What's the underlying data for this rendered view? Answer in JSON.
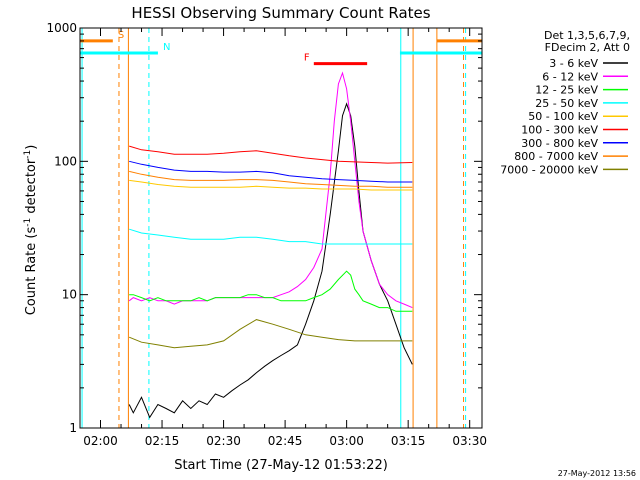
{
  "chart_data": {
    "type": "line",
    "title": "HESSI Observing Summary Count Rates",
    "xlabel": "Start Time (27-May-12 01:53:22)",
    "ylabel_main": "Count Rate (s",
    "ylabel_sup1": "-1",
    "ylabel_mid": " detector",
    "ylabel_sup2": "-1",
    "ylabel_end": ")",
    "yscale": "log",
    "ylim": [
      1,
      1000
    ],
    "xlim_minutes": [
      115,
      213
    ],
    "yticks": [
      {
        "v": 1,
        "label": "1"
      },
      {
        "v": 10,
        "label": "10"
      },
      {
        "v": 100,
        "label": "100"
      },
      {
        "v": 1000,
        "label": "1000"
      }
    ],
    "xticks": [
      {
        "m": 120,
        "label": "02:00"
      },
      {
        "m": 135,
        "label": "02:15"
      },
      {
        "m": 150,
        "label": "02:30"
      },
      {
        "m": 165,
        "label": "02:45"
      },
      {
        "m": 180,
        "label": "03:00"
      },
      {
        "m": 195,
        "label": "03:15"
      },
      {
        "m": 210,
        "label": "03:30"
      }
    ],
    "legend_header": [
      "Det 1,3,5,6,7,9,",
      "FDecim 2, Att 0"
    ],
    "series": [
      {
        "name": "3 - 6 keV",
        "color": "#000000",
        "x": [
          127,
          128,
          130,
          132,
          134,
          136,
          138,
          140,
          142,
          144,
          146,
          148,
          150,
          152,
          154,
          156,
          158,
          160,
          162,
          164,
          166,
          168,
          170,
          172,
          174,
          176,
          178,
          179,
          180,
          181,
          182,
          183,
          184,
          186,
          188,
          190,
          192,
          194,
          196
        ],
        "y": [
          1.5,
          1.3,
          1.7,
          1.2,
          1.5,
          1.4,
          1.3,
          1.6,
          1.4,
          1.6,
          1.5,
          1.8,
          1.7,
          1.9,
          2.1,
          2.3,
          2.6,
          2.9,
          3.2,
          3.5,
          3.8,
          4.2,
          6,
          9,
          15,
          40,
          120,
          220,
          270,
          220,
          130,
          60,
          30,
          18,
          12,
          9,
          6,
          4,
          3
        ]
      },
      {
        "name": "6 - 12 keV",
        "color": "#ff00ff",
        "x": [
          127,
          128,
          130,
          132,
          134,
          136,
          138,
          140,
          142,
          144,
          146,
          148,
          150,
          152,
          154,
          156,
          158,
          160,
          162,
          164,
          166,
          168,
          170,
          172,
          174,
          176,
          177,
          178,
          179,
          180,
          181,
          182,
          183,
          184,
          186,
          188,
          190,
          192,
          194,
          196
        ],
        "y": [
          9,
          9.5,
          9,
          9.5,
          9,
          9,
          8.5,
          9,
          9,
          9,
          9,
          9.5,
          9.5,
          9.5,
          9.5,
          9.5,
          9.5,
          9.5,
          9.5,
          10,
          10.5,
          11.5,
          13,
          16,
          22,
          80,
          200,
          380,
          460,
          350,
          200,
          100,
          50,
          30,
          18,
          12,
          10,
          9,
          8.5,
          8
        ]
      },
      {
        "name": "12 - 25 keV",
        "color": "#00ff00",
        "x": [
          127,
          128,
          130,
          132,
          134,
          136,
          138,
          140,
          142,
          144,
          146,
          148,
          150,
          152,
          154,
          156,
          158,
          160,
          162,
          164,
          166,
          168,
          170,
          172,
          174,
          176,
          178,
          180,
          181,
          182,
          183,
          184,
          186,
          188,
          190,
          192,
          194,
          196
        ],
        "y": [
          10,
          10,
          9.5,
          9,
          9.5,
          9,
          9,
          9,
          9,
          9.5,
          9,
          9.5,
          9.5,
          9.5,
          9.5,
          10,
          10,
          9.5,
          9.5,
          9,
          9,
          9,
          9,
          9.5,
          10,
          11,
          13,
          15,
          14,
          11,
          10,
          9,
          8.5,
          8,
          8,
          7.5,
          7.5,
          7.5
        ]
      },
      {
        "name": "25 - 50 keV",
        "color": "#00ffff",
        "x": [
          127,
          130,
          134,
          138,
          142,
          146,
          150,
          154,
          158,
          162,
          166,
          170,
          174,
          178,
          182,
          186,
          190,
          196
        ],
        "y": [
          31,
          29,
          28,
          27,
          26,
          26,
          26,
          27,
          27,
          26,
          25,
          25,
          24,
          24,
          24,
          24,
          24,
          24
        ]
      },
      {
        "name": "50 - 100 keV",
        "color": "#ffc800",
        "x": [
          127,
          130,
          134,
          138,
          142,
          146,
          150,
          154,
          158,
          162,
          166,
          170,
          174,
          178,
          182,
          186,
          190,
          196
        ],
        "y": [
          72,
          70,
          67,
          65,
          64,
          64,
          64,
          64,
          65,
          64,
          63,
          63,
          62,
          62,
          62,
          61,
          61,
          61
        ]
      },
      {
        "name": "100 - 300 keV",
        "color": "#ff0000",
        "x": [
          127,
          130,
          134,
          138,
          142,
          146,
          150,
          154,
          158,
          162,
          166,
          170,
          174,
          178,
          182,
          186,
          190,
          196
        ],
        "y": [
          130,
          122,
          118,
          113,
          113,
          113,
          115,
          118,
          120,
          115,
          110,
          106,
          103,
          100,
          99,
          98,
          97,
          98
        ]
      },
      {
        "name": "300 - 800 keV",
        "color": "#0000ff",
        "x": [
          127,
          130,
          134,
          138,
          142,
          146,
          150,
          154,
          158,
          162,
          166,
          170,
          174,
          178,
          182,
          186,
          190,
          196
        ],
        "y": [
          100,
          95,
          90,
          86,
          84,
          84,
          83,
          83,
          84,
          82,
          78,
          76,
          74,
          73,
          72,
          71,
          70,
          70
        ]
      },
      {
        "name": "800 - 7000 keV",
        "color": "#ff8000",
        "x": [
          127,
          130,
          134,
          138,
          142,
          146,
          150,
          154,
          158,
          162,
          166,
          170,
          174,
          178,
          182,
          186,
          190,
          196
        ],
        "y": [
          84,
          80,
          76,
          73,
          72,
          72,
          72,
          73,
          73,
          72,
          70,
          68,
          67,
          66,
          65,
          65,
          64,
          64
        ]
      },
      {
        "name": "7000 - 20000 keV",
        "color": "#808000",
        "x": [
          127,
          130,
          134,
          138,
          142,
          146,
          150,
          154,
          158,
          162,
          166,
          170,
          174,
          178,
          182,
          186,
          190,
          196
        ],
        "y": [
          4.8,
          4.4,
          4.2,
          4,
          4.1,
          4.2,
          4.5,
          5.5,
          6.5,
          6,
          5.5,
          5,
          4.8,
          4.6,
          4.5,
          4.5,
          4.5,
          4.5
        ]
      }
    ],
    "state_bars": [
      {
        "label": "S",
        "color": "#ff8000",
        "x": [
          115,
          123
        ],
        "y": 800
      },
      {
        "label": "N",
        "color": "#00ffff",
        "x": [
          115,
          134
        ],
        "y": 650
      },
      {
        "label": "F",
        "color": "#ff0000",
        "x": [
          172,
          185
        ],
        "y": 540
      },
      {
        "label": "",
        "color": "#00ffff",
        "x": [
          193,
          213
        ],
        "y": 650
      },
      {
        "label": "",
        "color": "#ff8000",
        "x": [
          202,
          213
        ],
        "y": 800
      }
    ],
    "vlines": [
      {
        "m": 115.5,
        "color": "#00ffff",
        "style": "solid"
      },
      {
        "m": 124.5,
        "color": "#ff8000",
        "style": "dashed"
      },
      {
        "m": 126.8,
        "color": "#ff8000",
        "style": "solid"
      },
      {
        "m": 131.8,
        "color": "#00ffff",
        "style": "dashed"
      },
      {
        "m": 193.2,
        "color": "#00ffff",
        "style": "solid"
      },
      {
        "m": 196.2,
        "color": "#ff8000",
        "style": "solid"
      },
      {
        "m": 202,
        "color": "#ff8000",
        "style": "solid"
      },
      {
        "m": 208.5,
        "color": "#ff8000",
        "style": "dashed"
      },
      {
        "m": 209,
        "color": "#00ffff",
        "style": "dashed"
      }
    ],
    "timestamp": "27-May-2012 13:56"
  }
}
